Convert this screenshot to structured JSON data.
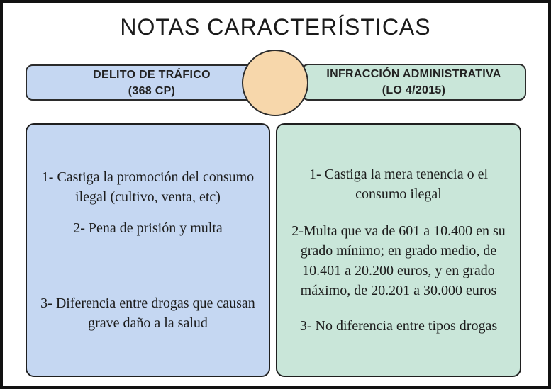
{
  "title": "NOTAS CARACTERÍSTICAS",
  "colors": {
    "left_fill": "#c5d7f2",
    "right_fill": "#c9e6d9",
    "circle_fill": "#f7d7ab",
    "border": "#2b2b2b",
    "text": "#1c1c1c",
    "frame": "#111111"
  },
  "connector": {
    "shape": "circle"
  },
  "left_column": {
    "header": "DELITO DE TRÁFICO\n(368 CP)",
    "items": [
      "1- Castiga la promoción del consumo\nilegal (cultivo, venta, etc)",
      "2- Pena de prisión y multa",
      "3- Diferencia entre drogas que causan\ngrave daño a la salud"
    ]
  },
  "right_column": {
    "header": "INFRACCIÓN ADMINISTRATIVA\n(LO 4/2015)",
    "items": [
      "1- Castiga la mera tenencia  o el\nconsumo ilegal",
      "2-Multa  que va de 601 a 10.400 en su\ngrado mínimo; en grado medio, de\n10.401 a 20.200 euros, y en grado\nmáximo, de 20.201 a 30.000 euros",
      "3- No diferencia entre tipos drogas"
    ]
  }
}
